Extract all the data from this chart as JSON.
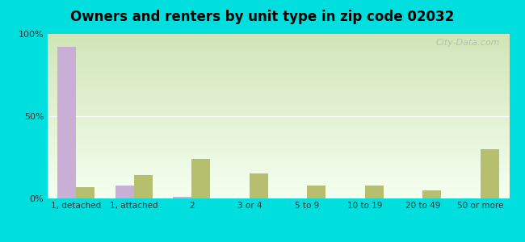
{
  "title": "Owners and renters by unit type in zip code 02032",
  "categories": [
    "1, detached",
    "1, attached",
    "2",
    "3 or 4",
    "5 to 9",
    "10 to 19",
    "20 to 49",
    "50 or more"
  ],
  "owner_values": [
    92,
    8,
    1,
    0,
    0,
    0,
    0,
    0
  ],
  "renter_values": [
    7,
    14,
    24,
    15,
    8,
    8,
    5,
    30
  ],
  "owner_color": "#c9aed6",
  "renter_color": "#b5bf6e",
  "outer_bg": "#00dede",
  "title_fontsize": 12,
  "ylim": [
    0,
    100
  ],
  "yticks": [
    0,
    50,
    100
  ],
  "ytick_labels": [
    "0%",
    "50%",
    "100%"
  ],
  "watermark": "City-Data.com",
  "bg_top_color": "#c8dba0",
  "bg_bottom_color": "#f5fdf0",
  "bg_right_color": "#e8f8f0"
}
